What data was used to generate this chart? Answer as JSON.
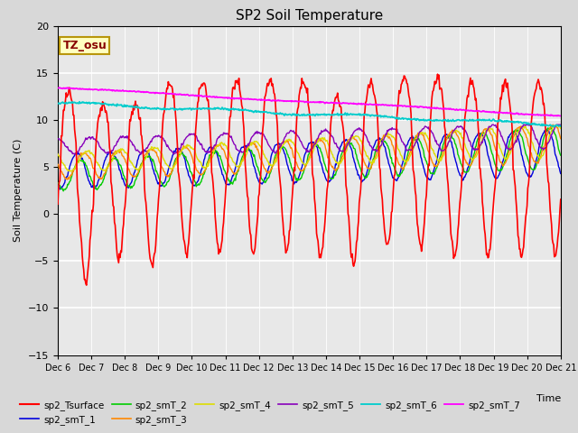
{
  "title": "SP2 Soil Temperature",
  "xlabel": "Time",
  "ylabel": "Soil Temperature (C)",
  "ylim": [
    -15,
    20
  ],
  "xlim": [
    0,
    15
  ],
  "annotation_text": "TZ_osu",
  "annotation_bg": "#ffffc0",
  "annotation_border": "#b8960c",
  "x_tick_labels": [
    "Dec 6",
    "Dec 7",
    "Dec 8",
    "Dec 9",
    "Dec 10",
    "Dec 11",
    "Dec 12",
    "Dec 13",
    "Dec 14",
    "Dec 15",
    "Dec 16",
    "Dec 17",
    "Dec 18",
    "Dec 19",
    "Dec 20",
    "Dec 21"
  ],
  "series_colors": {
    "sp2_Tsurface": "#ff0000",
    "sp2_smT_1": "#0000dd",
    "sp2_smT_2": "#00cc00",
    "sp2_smT_3": "#ff8800",
    "sp2_smT_4": "#dddd00",
    "sp2_smT_5": "#8800bb",
    "sp2_smT_6": "#00cccc",
    "sp2_smT_7": "#ff00ff"
  },
  "fig_facecolor": "#d8d8d8",
  "ax_facecolor": "#e8e8e8",
  "grid_color": "#ffffff"
}
